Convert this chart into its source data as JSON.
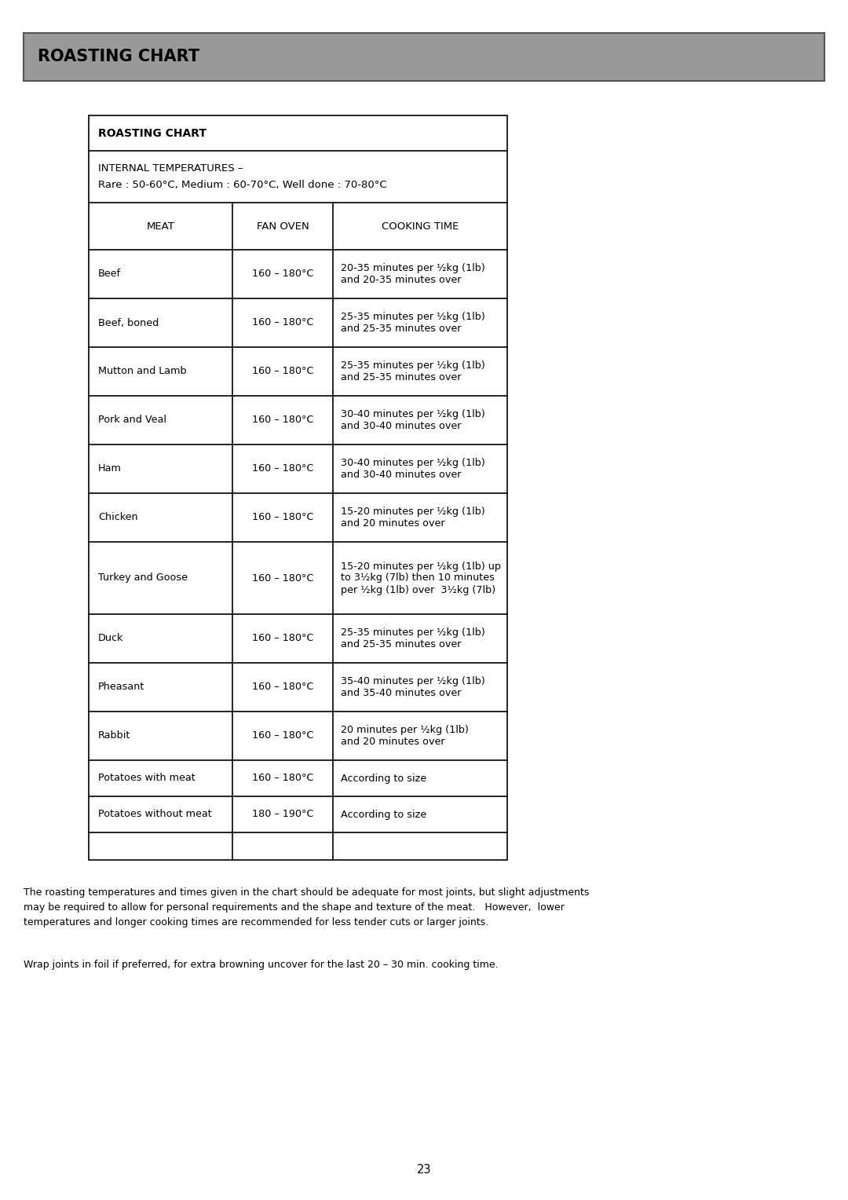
{
  "page_title": "ROASTING CHART",
  "page_title_bg": "#999999",
  "page_title_color": "#000000",
  "table_title": "ROASTING CHART",
  "internal_temp_line1": "INTERNAL TEMPERATURES –",
  "internal_temp_line2": "Rare : 50-60°C, Medium : 60-70°C, Well done : 70-80°C",
  "col_headers": [
    "MEAT",
    "FAN OVEN",
    "COOKING TIME"
  ],
  "rows": [
    [
      "Beef",
      "160 – 180°C",
      "20-35 minutes per ½kg (1lb)\nand 20-35 minutes over"
    ],
    [
      "Beef, boned",
      "160 – 180°C",
      "25-35 minutes per ½kg (1lb)\nand 25-35 minutes over"
    ],
    [
      "Mutton and Lamb",
      "160 – 180°C",
      "25-35 minutes per ½kg (1lb)\nand 25-35 minutes over"
    ],
    [
      "Pork and Veal",
      "160 – 180°C",
      "30-40 minutes per ½kg (1lb)\nand 30-40 minutes over"
    ],
    [
      "Ham",
      "160 – 180°C",
      "30-40 minutes per ½kg (1lb)\nand 30-40 minutes over"
    ],
    [
      "Chicken",
      "160 – 180°C",
      "15-20 minutes per ½kg (1lb)\nand 20 minutes over"
    ],
    [
      "Turkey and Goose",
      "160 – 180°C",
      "15-20 minutes per ½kg (1lb) up\nto 3½kg (7lb) then 10 minutes\nper ½kg (1lb) over  3½kg (7lb)"
    ],
    [
      "Duck",
      "160 – 180°C",
      "25-35 minutes per ½kg (1lb)\nand 25-35 minutes over"
    ],
    [
      "Pheasant",
      "160 – 180°C",
      "35-40 minutes per ½kg (1lb)\nand 35-40 minutes over"
    ],
    [
      "Rabbit",
      "160 – 180°C",
      "20 minutes per ½kg (1lb)\nand 20 minutes over"
    ],
    [
      "Potatoes with meat",
      "160 – 180°C",
      "According to size"
    ],
    [
      "Potatoes without meat",
      "180 – 190°C",
      "According to size"
    ]
  ],
  "footnote1_lines": [
    "The roasting temperatures and times given in the chart should be adequate for most joints, but slight adjustments",
    "may be required to allow for personal requirements and the shape and texture of the meat.   However,  lower",
    "temperatures and longer cooking times are recommended for less tender cuts or larger joints."
  ],
  "footnote2": "Wrap joints in foil if preferred, for extra browning uncover for the last 20 – 30 min. cooking time.",
  "page_number": "23",
  "bg_color": "#ffffff",
  "text_color": "#000000",
  "table_border_color": "#000000"
}
